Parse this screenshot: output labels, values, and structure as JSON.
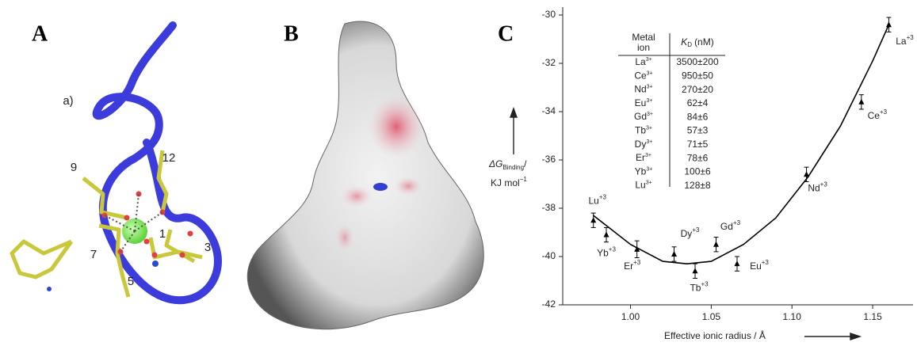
{
  "panel_labels": [
    "A",
    "B",
    "C"
  ],
  "structure_labels": [
    "a)",
    "9",
    "12",
    "1",
    "3",
    "5",
    "7"
  ],
  "chart_data": {
    "type": "scatter",
    "x": [
      0.977,
      0.985,
      1.004,
      1.027,
      1.04,
      1.053,
      1.066,
      1.109,
      1.143,
      1.16
    ],
    "values": [
      -38.5,
      -39.1,
      -39.7,
      -39.9,
      -40.6,
      -39.5,
      -40.3,
      -36.6,
      -33.6,
      -30.4
    ],
    "errors": [
      0.3,
      0.3,
      0.35,
      0.3,
      0.3,
      0.3,
      0.3,
      0.3,
      0.3,
      0.3
    ],
    "point_labels": [
      "Lu",
      "Yb",
      "Er",
      "Dy",
      "Tb",
      "Gd",
      "Eu",
      "Nd",
      "Ce",
      "La"
    ],
    "point_charge": "+3",
    "color": "#000000",
    "fit": {
      "x": [
        0.977,
        1.0,
        1.02,
        1.035,
        1.05,
        1.07,
        1.09,
        1.11,
        1.13,
        1.15,
        1.16
      ],
      "values": [
        -38.3,
        -39.5,
        -40.2,
        -40.3,
        -40.2,
        -39.5,
        -38.4,
        -36.7,
        -34.6,
        -31.9,
        -30.4
      ]
    },
    "xlim": [
      0.958,
      1.175
    ],
    "ylim": [
      -42,
      -30
    ],
    "xticks": [
      {
        "value": 1,
        "label": "1.00"
      },
      1.05,
      {
        "value": 1.1,
        "label": "1.10"
      },
      1.15
    ],
    "yticks": [
      -42,
      -40,
      -38,
      -36,
      -34,
      -32,
      -30
    ],
    "x_label": "Effective ionic radius / Å",
    "y_label": {
      "symbol": "ΔG",
      "subscript": "Binding",
      "slash": "/",
      "unit": "KJ mol",
      "unit_power": "−1"
    },
    "inset_table": {
      "header_ion": [
        "Metal",
        "ion"
      ],
      "header_kd": {
        "symbol": "K",
        "subscript": "D",
        "unit": "(nM)"
      },
      "ion_charge": "3+",
      "rows": [
        [
          "La",
          "3500±200"
        ],
        [
          "Ce",
          "950±50"
        ],
        [
          "Nd",
          "270±20"
        ],
        [
          "Eu",
          "62±4"
        ],
        [
          "Gd",
          "84±6"
        ],
        [
          "Tb",
          "57±3"
        ],
        [
          "Dy",
          "71±5"
        ],
        [
          "Er",
          "78±6"
        ],
        [
          "Yb",
          "100±6"
        ],
        [
          "Lu",
          "128±8"
        ]
      ]
    }
  }
}
